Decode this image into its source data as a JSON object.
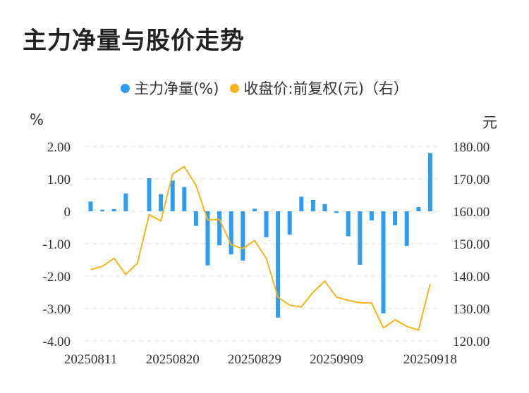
{
  "title": "主力净量与股价走势",
  "legend": {
    "net": "主力净量(%)",
    "price": "收盘价:前复权(元)（右）"
  },
  "units": {
    "left": "%",
    "right": "元"
  },
  "colors": {
    "bar": "#2e9cf0",
    "line": "#f4b41a",
    "grid": "#e6e6e6"
  },
  "chart_data": {
    "type": "bar+line",
    "title": "主力净量与股价走势",
    "x_tick_labels": [
      "20250811",
      "20250820",
      "20250829",
      "20250909",
      "20250918"
    ],
    "x_tick_indices": [
      0,
      7,
      14,
      21,
      29
    ],
    "left_axis": {
      "label": "%",
      "min": -4,
      "max": 2,
      "ticks": [
        "-4.00",
        "-3.00",
        "-2.00",
        "-1.00",
        "0",
        "1.00",
        "2.00"
      ]
    },
    "right_axis": {
      "label": "元",
      "min": 120,
      "max": 180,
      "ticks": [
        "120.00",
        "130.00",
        "140.00",
        "150.00",
        "160.00",
        "170.00",
        "180.00"
      ]
    },
    "series": [
      {
        "name": "主力净量(%)",
        "type": "bar",
        "axis": "left",
        "values": [
          0.3,
          0.05,
          0.07,
          0.55,
          0.0,
          1.02,
          0.53,
          0.95,
          0.75,
          -0.45,
          -1.67,
          -1.05,
          -1.33,
          -1.52,
          0.08,
          -0.8,
          -3.28,
          -0.72,
          0.45,
          0.35,
          0.22,
          -0.05,
          -0.77,
          -1.65,
          -0.28,
          -3.15,
          -0.43,
          -1.07,
          0.13,
          1.8
        ]
      },
      {
        "name": "收盘价:前复权(元)（右）",
        "type": "line",
        "axis": "right",
        "values": [
          142.0,
          143.0,
          145.5,
          140.5,
          144.0,
          159.0,
          157.0,
          171.5,
          173.8,
          168.0,
          157.3,
          157.5,
          149.7,
          148.5,
          151.0,
          145.5,
          133.5,
          131.0,
          130.5,
          135.0,
          138.5,
          133.5,
          132.5,
          131.8,
          131.7,
          124.0,
          126.5,
          124.5,
          123.3,
          137.5
        ]
      }
    ]
  }
}
